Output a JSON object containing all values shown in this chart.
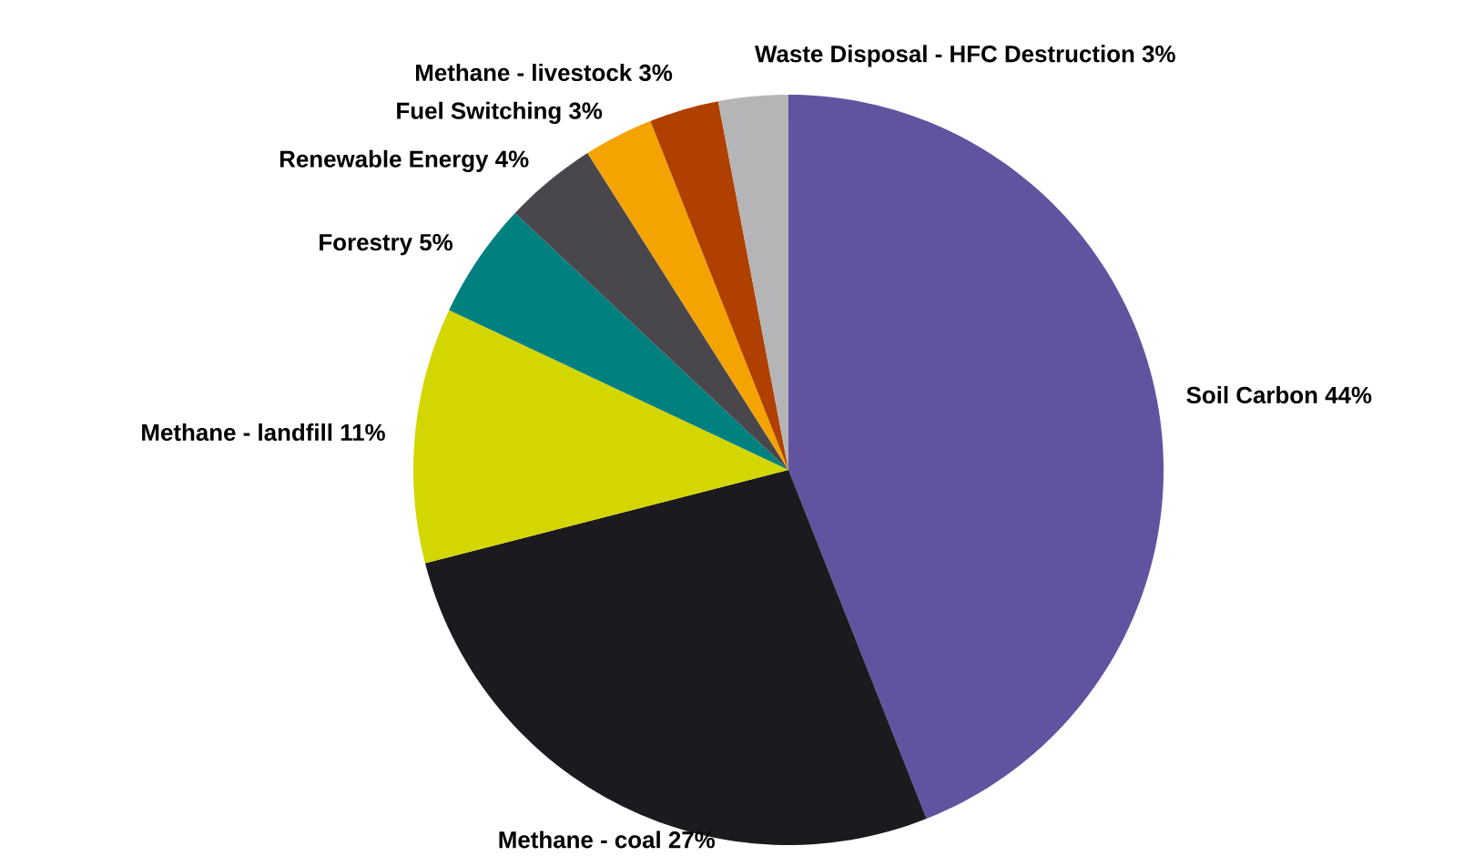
{
  "chart_data": {
    "type": "pie",
    "categories": [
      "Soil Carbon",
      "Methane - coal",
      "Methane - landfill",
      "Forestry",
      "Renewable Energy",
      "Fuel Switching",
      "Methane - livestock",
      "Waste Disposal - HFC Destruction"
    ],
    "values": [
      44,
      27,
      11,
      5,
      4,
      3,
      3,
      3
    ],
    "value_labels": [
      "44%",
      "27%",
      "11%",
      "5%",
      "4%",
      "3%",
      "3%",
      "3%"
    ],
    "colors": [
      "#6153a0",
      "#1c1a1f",
      "#d4d600",
      "#00807f",
      "#4a474c",
      "#f4a300",
      "#b04000",
      "#b5b5b7"
    ]
  }
}
